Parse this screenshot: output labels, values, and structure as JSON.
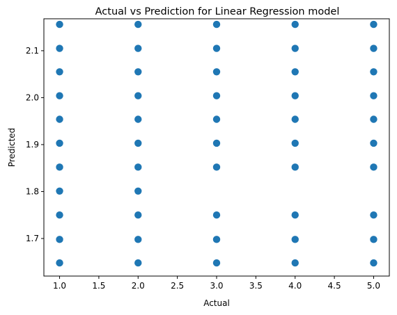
{
  "chart_data": {
    "type": "scatter",
    "title": "Actual vs Prediction for Linear Regression model",
    "xlabel": "Actual",
    "ylabel": "Predicted",
    "xlim": [
      0.8,
      5.2
    ],
    "ylim": [
      1.62,
      2.168
    ],
    "xticks": [
      1.0,
      1.5,
      2.0,
      2.5,
      3.0,
      3.5,
      4.0,
      4.5,
      5.0
    ],
    "xtick_labels": [
      "1.0",
      "1.5",
      "2.0",
      "2.5",
      "3.0",
      "3.5",
      "4.0",
      "4.5",
      "5.0"
    ],
    "yticks": [
      1.7,
      1.8,
      1.9,
      2.0,
      2.1
    ],
    "ytick_labels": [
      "1.7",
      "1.8",
      "1.9",
      "2.0",
      "2.1"
    ],
    "grid": false,
    "marker_color": "#1f77b4",
    "series": [
      {
        "points": [
          [
            1,
            1.648
          ],
          [
            1,
            1.698
          ],
          [
            1,
            1.75
          ],
          [
            1,
            1.801
          ],
          [
            1,
            1.852
          ],
          [
            1,
            1.903
          ],
          [
            1,
            1.954
          ],
          [
            1,
            2.004
          ],
          [
            1,
            2.055
          ],
          [
            1,
            2.105
          ],
          [
            1,
            2.156
          ],
          [
            2,
            1.648
          ],
          [
            2,
            1.698
          ],
          [
            2,
            1.75
          ],
          [
            2,
            1.801
          ],
          [
            2,
            1.852
          ],
          [
            2,
            1.903
          ],
          [
            2,
            1.954
          ],
          [
            2,
            2.004
          ],
          [
            2,
            2.055
          ],
          [
            2,
            2.105
          ],
          [
            2,
            2.156
          ],
          [
            3,
            1.648
          ],
          [
            3,
            1.698
          ],
          [
            3,
            1.75
          ],
          [
            3,
            1.852
          ],
          [
            3,
            1.903
          ],
          [
            3,
            1.954
          ],
          [
            3,
            2.004
          ],
          [
            3,
            2.055
          ],
          [
            3,
            2.105
          ],
          [
            3,
            2.156
          ],
          [
            4,
            1.648
          ],
          [
            4,
            1.698
          ],
          [
            4,
            1.75
          ],
          [
            4,
            1.852
          ],
          [
            4,
            1.903
          ],
          [
            4,
            1.954
          ],
          [
            4,
            2.004
          ],
          [
            4,
            2.055
          ],
          [
            4,
            2.105
          ],
          [
            4,
            2.156
          ],
          [
            5,
            1.648
          ],
          [
            5,
            1.698
          ],
          [
            5,
            1.75
          ],
          [
            5,
            1.852
          ],
          [
            5,
            1.903
          ],
          [
            5,
            1.954
          ],
          [
            5,
            2.004
          ],
          [
            5,
            2.055
          ],
          [
            5,
            2.105
          ],
          [
            5,
            2.156
          ]
        ]
      }
    ]
  }
}
